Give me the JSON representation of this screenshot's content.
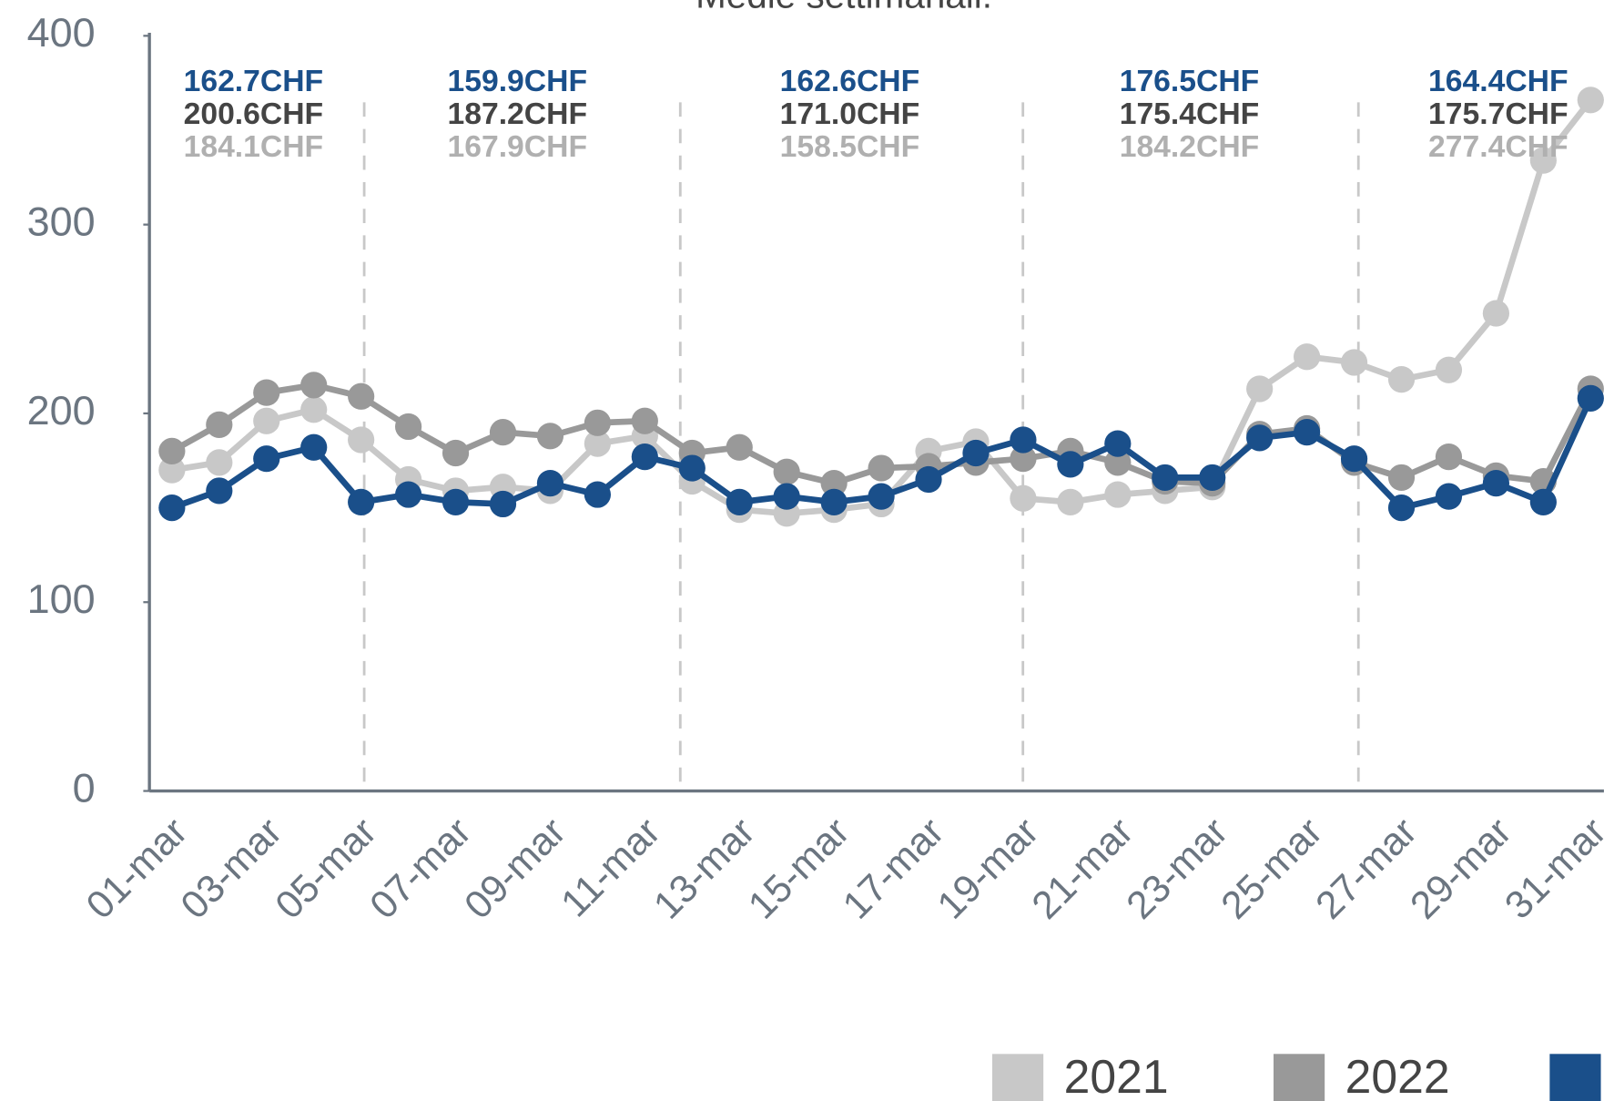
{
  "chart_data": {
    "type": "line",
    "title": "Medie settimanali:",
    "categories": [
      "01-mar",
      null,
      "03-mar",
      null,
      "05-mar",
      null,
      "07-mar",
      null,
      "09-mar",
      null,
      "11-mar",
      null,
      "13-mar",
      null,
      "15-mar",
      null,
      "17-mar",
      null,
      "19-mar",
      null,
      "21-mar",
      null,
      "23-mar",
      null,
      "25-mar",
      null,
      "27-mar",
      null,
      "29-mar",
      null,
      "31-mar"
    ],
    "series": [
      {
        "name": "2021",
        "color": "#c8c8c8",
        "values": [
          170,
          174,
          196,
          202,
          186,
          165,
          159,
          161,
          159,
          184,
          188,
          164,
          149,
          147,
          149,
          152,
          180,
          185,
          155,
          153,
          157,
          159,
          161,
          213,
          230,
          227,
          218,
          223,
          253,
          334,
          366
        ]
      },
      {
        "name": "2022",
        "color": "#999999",
        "values": [
          180,
          194,
          211,
          215,
          209,
          193,
          179,
          190,
          188,
          195,
          196,
          179,
          182,
          169,
          163,
          171,
          172,
          174,
          176,
          180,
          174,
          164,
          163,
          189,
          192,
          174,
          166,
          177,
          167,
          164,
          213
        ]
      },
      {
        "color": "#1a4f8a",
        "values": [
          150,
          159,
          176,
          182,
          153,
          157,
          153,
          152,
          163,
          157,
          177,
          171,
          153,
          156,
          153,
          156,
          165,
          179,
          186,
          173,
          184,
          166,
          166,
          187,
          190,
          176,
          150,
          156,
          163,
          153,
          208
        ]
      }
    ],
    "ylim": [
      0,
      400
    ],
    "yticks": [
      0,
      100,
      200,
      300,
      400
    ],
    "weekly_averages": [
      [
        "162.7CHF",
        "200.6CHF",
        "184.1CHF"
      ],
      [
        "159.9CHF",
        "187.2CHF",
        "167.9CHF"
      ],
      [
        "162.6CHF",
        "171.0CHF",
        "158.5CHF"
      ],
      [
        "176.5CHF",
        "175.4CHF",
        "184.2CHF"
      ],
      [
        "164.4CHF",
        "175.7CHF",
        "277.4CHF"
      ]
    ],
    "weekly_average_colors": [
      "#1a4f8a",
      "#444444",
      "#b0b0b0"
    ]
  }
}
